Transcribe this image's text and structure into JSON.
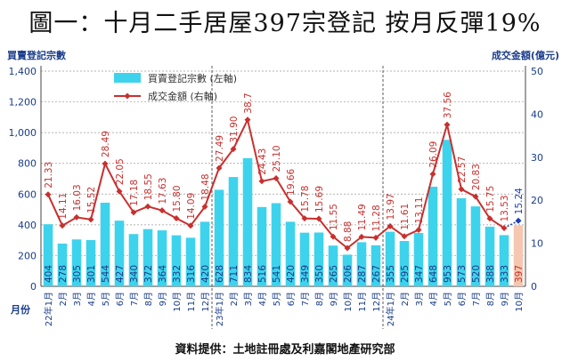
{
  "title": "圖一：十月二手居屋397宗登記 按月反彈19%",
  "source": "資料提供：土地註冊處及利嘉閣地產研究部",
  "chart_data": {
    "type": "bar+line",
    "left_axis_label": "買賣登記宗數",
    "right_axis_label": "成交金額(億元)",
    "x_axis_label": "月份",
    "ylim_left": [
      0,
      1400
    ],
    "left_ticks": [
      "0",
      "200",
      "400",
      "600",
      "800",
      "1,000",
      "1,200",
      "1,400"
    ],
    "ylim_right": [
      0,
      50
    ],
    "right_ticks": [
      "0",
      "10",
      "20",
      "30",
      "40",
      "50"
    ],
    "legend": {
      "bar_label": "買賣登記宗數 (左軸)",
      "line_label": "成交金額 (右軸)"
    },
    "categories": [
      "22年1月",
      "2月",
      "3月",
      "4月",
      "5月",
      "6月",
      "7月",
      "8月",
      "9月",
      "10月",
      "11月",
      "12月",
      "23年1月",
      "2月",
      "3月",
      "4月",
      "5月",
      "6月",
      "7月",
      "8月",
      "9月",
      "10月",
      "11月",
      "12月",
      "24年1月",
      "2月",
      "3月",
      "4月",
      "5月",
      "6月",
      "7月",
      "8月",
      "9月",
      "10月"
    ],
    "bar_values": [
      404,
      278,
      305,
      301,
      544,
      427,
      340,
      372,
      364,
      332,
      316,
      420,
      628,
      711,
      834,
      516,
      541,
      420,
      349,
      350,
      265,
      206,
      287,
      267,
      355,
      295,
      347,
      648,
      953,
      573,
      520,
      388,
      333,
      397
    ],
    "line_values": [
      21.33,
      14.11,
      16.03,
      15.52,
      28.49,
      22.05,
      17.18,
      18.55,
      17.63,
      15.8,
      14.09,
      18.48,
      27.49,
      31.9,
      38.7,
      24.43,
      25.1,
      19.66,
      15.78,
      15.69,
      11.55,
      8.88,
      11.49,
      11.28,
      13.97,
      11.61,
      13.11,
      26.09,
      37.56,
      22.57,
      20.83,
      15.75,
      13.53,
      15.24
    ],
    "line_labels": [
      "21.33",
      "14.11",
      "16.03",
      "15.52",
      "28.49",
      "22.05",
      "17.18",
      "18.55",
      "17.63",
      "15.80",
      "14.09",
      "18.48",
      "27.49",
      "31.90",
      "38.7",
      "24.43",
      "25.10",
      "19.66",
      "15.78",
      "15.69",
      "11.55",
      "8.88",
      "11.49",
      "11.28",
      "13.97",
      "11.61",
      "13.11",
      "26.09",
      "37.56",
      "22.57",
      "20.83",
      "15.75",
      "13.53",
      "15.24"
    ],
    "colors": {
      "bar": "#3ed3ec",
      "bar_last": "#f6c7b0",
      "line": "#c8302e",
      "line_last": "#1f3fb0",
      "bar_label": "#1a3c8a",
      "bar_label_last": "#c8302e",
      "axis_text": "#1a3c8a",
      "grid": "#9a9a9a"
    }
  }
}
